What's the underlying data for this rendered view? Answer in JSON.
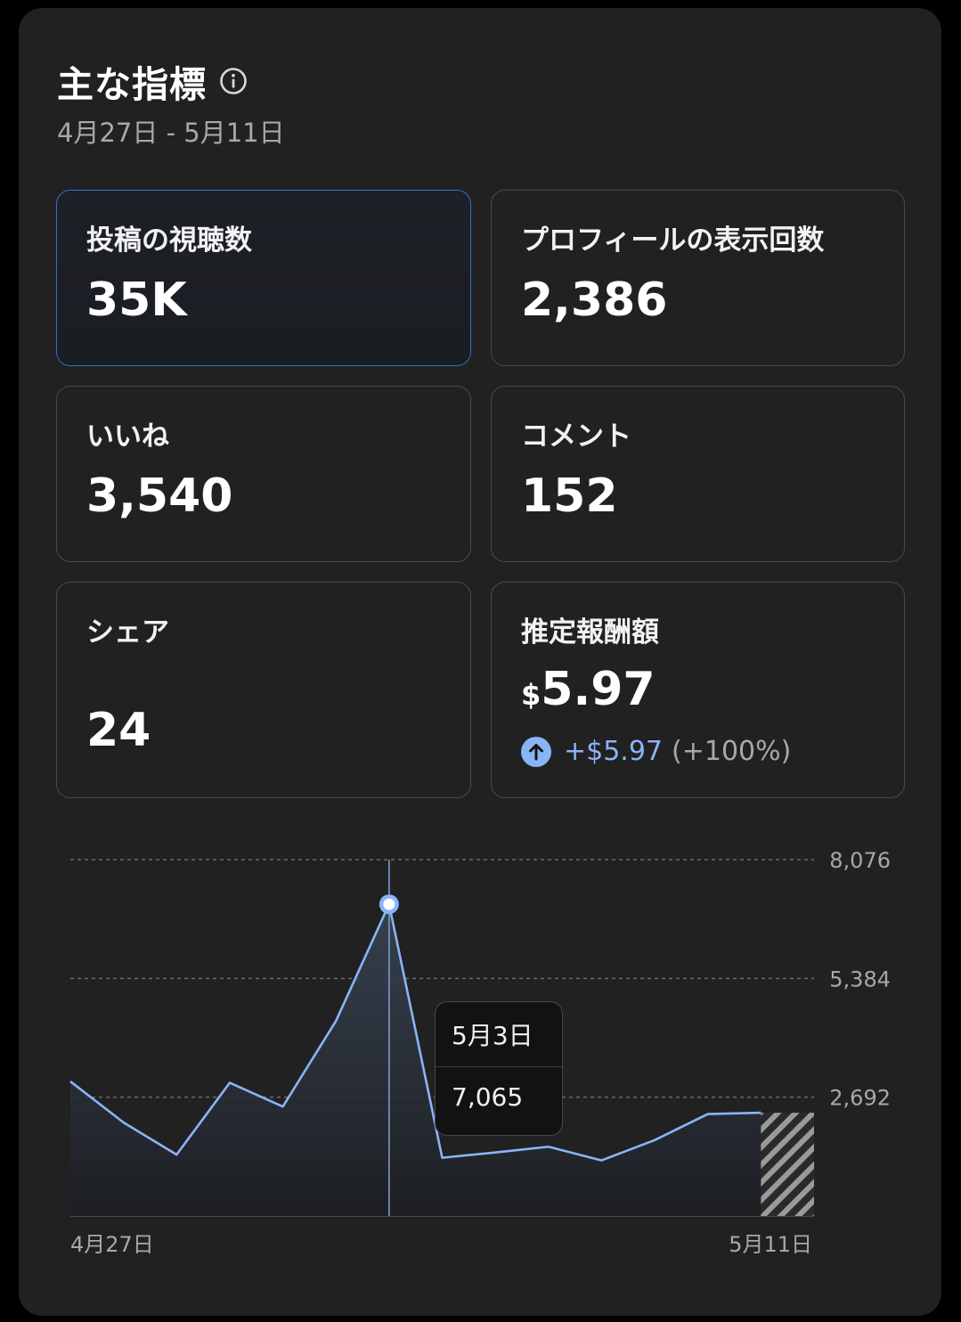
{
  "header": {
    "title": "主な指標",
    "date_range": "4月27日 - 5月11日",
    "info_icon": "info-icon"
  },
  "metrics": [
    {
      "label": "投稿の視聴数",
      "value": "35K",
      "selected": true
    },
    {
      "label": "プロフィールの表示回数",
      "value": "2,386"
    },
    {
      "label": "いいね",
      "value": "3,540"
    },
    {
      "label": "コメント",
      "value": "152"
    },
    {
      "label": "シェア",
      "value": "24"
    },
    {
      "label": "推定報酬額",
      "currency": "$",
      "amount": "5.97",
      "change": "+$5.97",
      "change_pct": "(+100%)",
      "change_icon": "arrow-up-circle-icon"
    }
  ],
  "colors": {
    "accent": "#8ab4f8",
    "selected_border": "#2f6fd6",
    "panel_bg": "#212121"
  },
  "chart_data": {
    "type": "area",
    "x": [
      "4月27日",
      "4月28日",
      "4月29日",
      "4月30日",
      "5月1日",
      "5月2日",
      "5月3日",
      "5月4日",
      "5月5日",
      "5月6日",
      "5月7日",
      "5月8日",
      "5月9日",
      "5月10日",
      "5月11日"
    ],
    "values": [
      3050,
      2120,
      1390,
      3020,
      2480,
      4420,
      7065,
      1320,
      1440,
      1570,
      1260,
      1720,
      2310,
      2340,
      null
    ],
    "y_ticks": [
      2692,
      5384,
      8076
    ],
    "y_tick_labels": [
      "2,692",
      "5,384",
      "8,076"
    ],
    "ylim": [
      0,
      8076
    ],
    "x_tick_labels": [
      "4月27日",
      "5月11日"
    ],
    "grid": true,
    "incomplete_last_day": true,
    "tooltip": {
      "date": "5月3日",
      "value": "7,065"
    }
  }
}
